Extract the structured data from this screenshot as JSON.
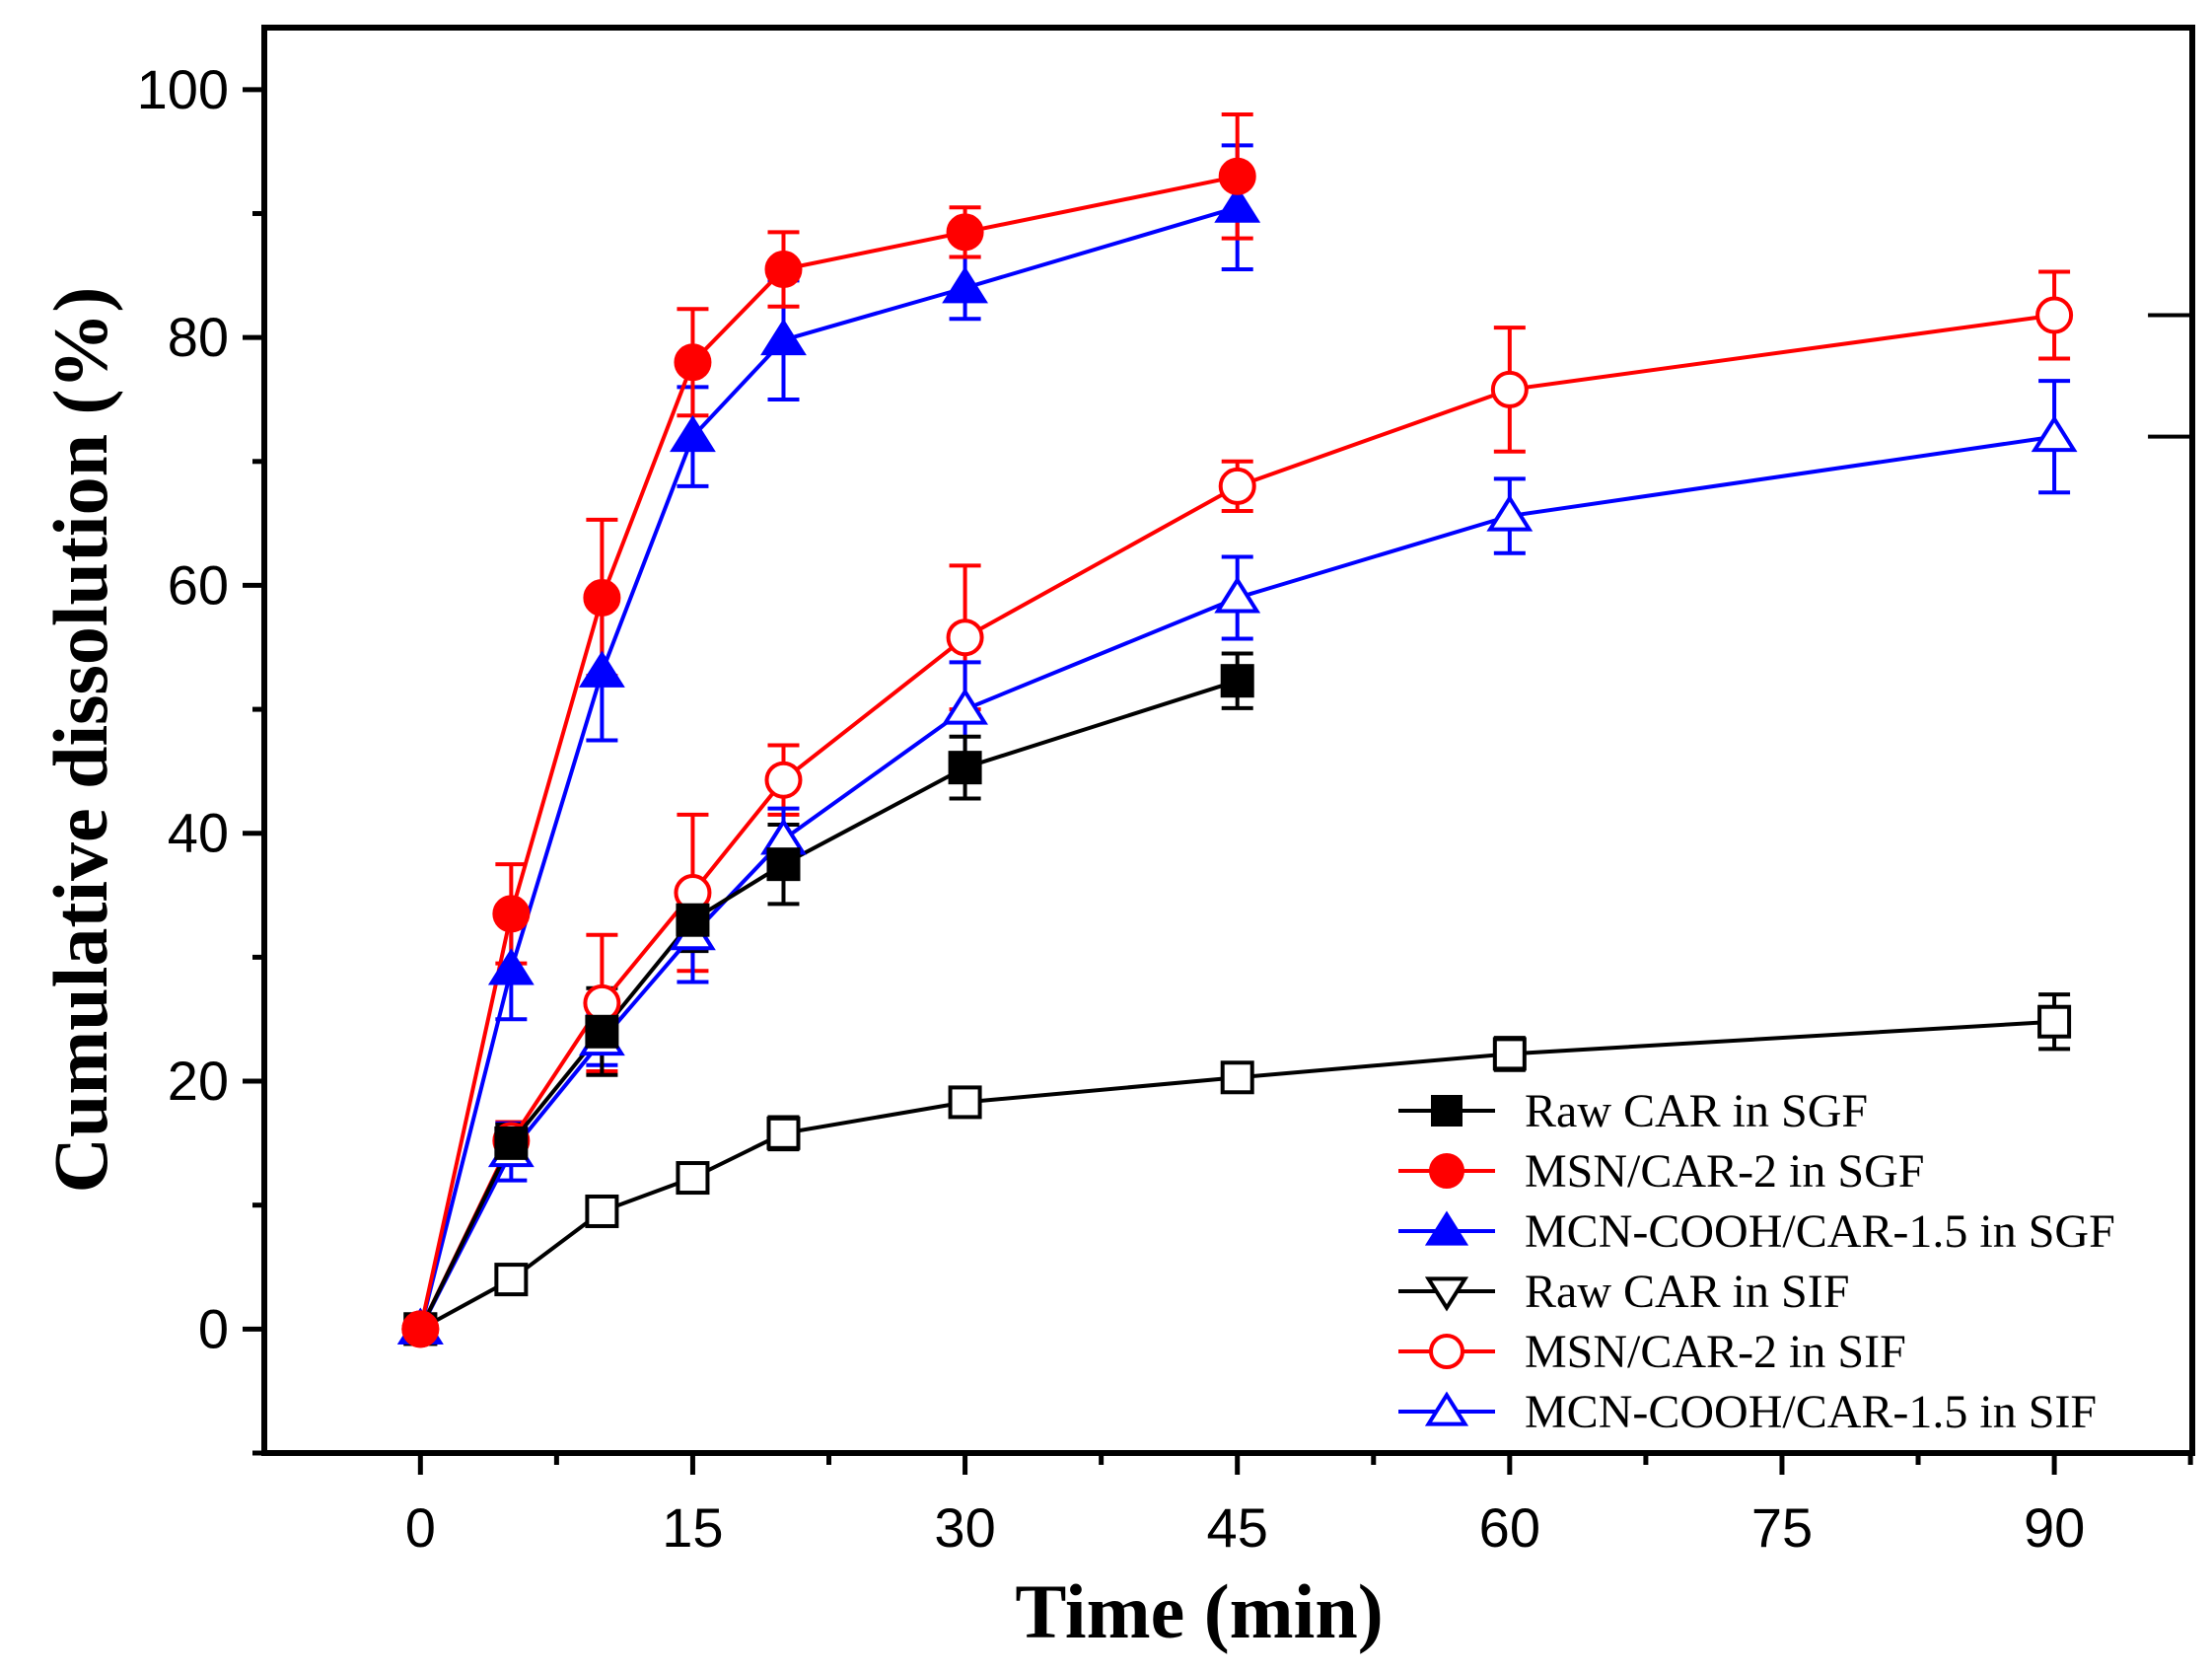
{
  "chart_data": {
    "type": "line",
    "title": "",
    "xlabel": "Time (min)",
    "ylabel": "Cumulative dissolution (%)",
    "xlim": [
      -8.6,
      97.6
    ],
    "ylim": [
      -10,
      105
    ],
    "xticks": [
      0,
      15,
      30,
      45,
      60,
      75,
      90
    ],
    "xtick_labels": [
      "0",
      "15",
      "30",
      "45",
      "60",
      "75",
      "90"
    ],
    "yticks": [
      0,
      20,
      40,
      60,
      80,
      100
    ],
    "ytick_labels": [
      "0",
      "20",
      "40",
      "60",
      "80",
      "100"
    ],
    "legend_position": "bottom-right",
    "series": [
      {
        "name": "Raw CAR in SGF",
        "color": "#000000",
        "marker": "square-filled",
        "x": [
          0,
          5,
          10,
          15,
          20,
          30,
          45
        ],
        "values": [
          0,
          15,
          24,
          33,
          37.5,
          45.3,
          52.3
        ],
        "errors": [
          0,
          1.5,
          3.5,
          2.5,
          3.2,
          2.5,
          2.2
        ]
      },
      {
        "name": "MSN/CAR-2 in SGF",
        "color": "#ff0000",
        "marker": "circle-filled",
        "x": [
          0,
          5,
          10,
          15,
          20,
          30,
          45
        ],
        "values": [
          0,
          33.5,
          59,
          78,
          85.5,
          88.5,
          93
        ],
        "errors": [
          0,
          4,
          6.3,
          4.3,
          3,
          2,
          5
        ]
      },
      {
        "name": "MCN-COOH/CAR-1.5 in SGF",
        "color": "#0000ff",
        "marker": "triangle-up-filled",
        "x": [
          0,
          5,
          10,
          15,
          20,
          30,
          45
        ],
        "values": [
          0,
          29,
          53,
          72,
          79.8,
          84,
          90.5
        ],
        "errors": [
          0,
          4,
          5.5,
          4,
          4.8,
          2.5,
          5
        ]
      },
      {
        "name": "Raw CAR in SIF",
        "color": "#000000",
        "marker": "square-open",
        "x": [
          0,
          5,
          10,
          15,
          20,
          30,
          45,
          60,
          90
        ],
        "values": [
          0,
          4,
          9.5,
          12.2,
          15.8,
          18.3,
          20.3,
          22.2,
          24.8
        ],
        "errors": [
          0,
          0.8,
          1,
          1,
          1.3,
          0.8,
          0.7,
          1.3,
          2.2
        ]
      },
      {
        "name": "MSN/CAR-2 in SIF",
        "color": "#ff0000",
        "marker": "circle-open",
        "x": [
          0,
          5,
          10,
          15,
          20,
          30,
          45,
          60,
          90
        ],
        "values": [
          0,
          15.2,
          26.3,
          35.2,
          44.3,
          55.8,
          68,
          75.8,
          81.8
        ],
        "errors": [
          0,
          1.5,
          5.5,
          6.3,
          2.8,
          5.8,
          2,
          5,
          3.5
        ]
      },
      {
        "name": "MCN-COOH/CAR-1.5 in SIF",
        "color": "#0000ff",
        "marker": "triangle-up-open",
        "x": [
          0,
          5,
          10,
          15,
          20,
          30,
          45,
          60,
          90
        ],
        "values": [
          0,
          14.3,
          23.3,
          31.8,
          39.5,
          50,
          59,
          65.6,
          72
        ],
        "errors": [
          0,
          2.3,
          2,
          3.8,
          2.5,
          3.8,
          3.3,
          3,
          4.5
        ]
      }
    ],
    "annotations": [
      {
        "text": "*",
        "between": [
          "MSN/CAR-2 in SIF",
          "MCN-COOH/CAR-1.5 in SIF"
        ],
        "at_x": 90
      }
    ]
  }
}
